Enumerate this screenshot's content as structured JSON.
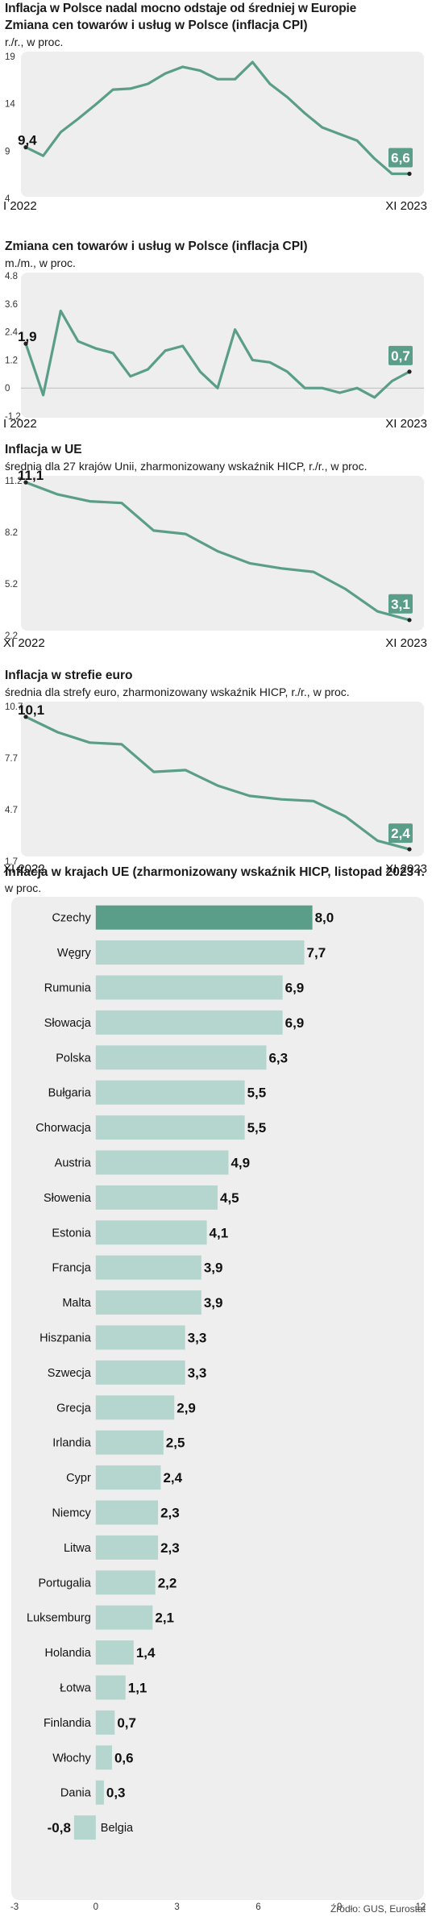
{
  "headline": "Inflacja w Polsce nadal mocno odstaje od średniej w Europie",
  "source": "Źródło: GUS, Eurostat",
  "colors": {
    "line": "#5a9e89",
    "panel": "#eeeeee",
    "bar": "#b4d6ce",
    "bar_highlight": "#5a9e89",
    "label_box": "#5a9e89"
  },
  "chart_data": [
    {
      "id": "cpi-yoy",
      "type": "line",
      "title": "Zmiana cen towarów i usług w Polsce (inflacja CPI)",
      "unit": "r./r., w proc.",
      "x_start_label": "I 2022",
      "x_end_label": "XI 2023",
      "y_ticks": [
        "19",
        "14",
        "9",
        "4"
      ],
      "ylim": [
        4,
        19
      ],
      "start_label": "9,4",
      "end_label": "6,6",
      "x": [
        "I 2022",
        "II 2022",
        "III 2022",
        "IV 2022",
        "V 2022",
        "VI 2022",
        "VII 2022",
        "VIII 2022",
        "IX 2022",
        "X 2022",
        "XI 2022",
        "XII 2022",
        "I 2023",
        "II 2023",
        "III 2023",
        "IV 2023",
        "V 2023",
        "VI 2023",
        "VII 2023",
        "VIII 2023",
        "IX 2023",
        "X 2023",
        "XI 2023"
      ],
      "values": [
        9.4,
        8.5,
        11.0,
        12.4,
        13.9,
        15.5,
        15.6,
        16.1,
        17.2,
        17.9,
        17.5,
        16.6,
        16.6,
        18.4,
        16.1,
        14.7,
        13.0,
        11.5,
        10.8,
        10.1,
        8.2,
        6.6,
        6.6
      ]
    },
    {
      "id": "cpi-mom",
      "type": "line",
      "title": "Zmiana cen towarów i usług w Polsce (inflacja CPI)",
      "unit": "m./m., w proc.",
      "x_start_label": "I 2022",
      "x_end_label": "XI 2023",
      "y_ticks": [
        "4.8",
        "3.6",
        "2.4",
        "1.2",
        "0",
        "-1.2"
      ],
      "ylim": [
        -1.2,
        4.8
      ],
      "start_label": "1,9",
      "end_label": "0,7",
      "x": [
        "I 2022",
        "II 2022",
        "III 2022",
        "IV 2022",
        "V 2022",
        "VI 2022",
        "VII 2022",
        "VIII 2022",
        "IX 2022",
        "X 2022",
        "XI 2022",
        "XII 2022",
        "I 2023",
        "II 2023",
        "III 2023",
        "IV 2023",
        "V 2023",
        "VI 2023",
        "VII 2023",
        "VIII 2023",
        "IX 2023",
        "X 2023",
        "XI 2023"
      ],
      "values": [
        1.9,
        -0.3,
        3.3,
        2.0,
        1.7,
        1.5,
        0.5,
        0.8,
        1.6,
        1.8,
        0.7,
        0.0,
        2.5,
        1.2,
        1.1,
        0.7,
        0.0,
        0.0,
        -0.2,
        0.0,
        -0.4,
        0.3,
        0.7
      ]
    },
    {
      "id": "hicp-eu",
      "type": "line",
      "title": "Inflacja w UE",
      "unit": "średnia dla 27 krajów Unii, zharmonizowany wskaźnik HICP, r./r., w proc.",
      "x_start_label": "XI 2022",
      "x_end_label": "XI 2023",
      "y_ticks": [
        "11.2",
        "8.2",
        "5.2",
        "2.2"
      ],
      "ylim": [
        2.2,
        11.2
      ],
      "start_label": "11,1",
      "end_label": "3,1",
      "x": [
        "XI 2022",
        "XII 2022",
        "I 2023",
        "II 2023",
        "III 2023",
        "IV 2023",
        "V 2023",
        "VI 2023",
        "VII 2023",
        "VIII 2023",
        "IX 2023",
        "X 2023",
        "XI 2023"
      ],
      "values": [
        11.1,
        10.4,
        10.0,
        9.9,
        8.3,
        8.1,
        7.1,
        6.4,
        6.1,
        5.9,
        4.9,
        3.6,
        3.1
      ]
    },
    {
      "id": "hicp-eurozone",
      "type": "line",
      "title": "Inflacja w strefie euro",
      "unit": "średnia dla strefy euro, zharmonizowany wskaźnik HICP, r./r., w proc.",
      "x_start_label": "XI 2022",
      "x_end_label": "XI 2023",
      "y_ticks": [
        "10.7",
        "7.7",
        "4.7",
        "1.7"
      ],
      "ylim": [
        1.7,
        10.7
      ],
      "start_label": "10,1",
      "end_label": "2,4",
      "x": [
        "XI 2022",
        "XII 2022",
        "I 2023",
        "II 2023",
        "III 2023",
        "IV 2023",
        "V 2023",
        "VI 2023",
        "VII 2023",
        "VIII 2023",
        "IX 2023",
        "X 2023",
        "XI 2023"
      ],
      "values": [
        10.1,
        9.2,
        8.6,
        8.5,
        6.9,
        7.0,
        6.1,
        5.5,
        5.3,
        5.2,
        4.3,
        2.9,
        2.4
      ]
    },
    {
      "id": "hicp-countries",
      "type": "bar",
      "orientation": "horizontal",
      "title": "Inflacja w krajach UE (zharmonizowany wskaźnik HICP, listopad 2023 r.",
      "unit": "w proc.",
      "xlim": [
        -3,
        12
      ],
      "x_ticks": [
        "-3",
        "0",
        "3",
        "6",
        "9",
        "12"
      ],
      "highlight": "Czechy",
      "categories": [
        "Czechy",
        "Węgry",
        "Rumunia",
        "Słowacja",
        "Polska",
        "Bułgaria",
        "Chorwacja",
        "Austria",
        "Słowenia",
        "Estonia",
        "Francja",
        "Malta",
        "Hiszpania",
        "Szwecja",
        "Grecja",
        "Irlandia",
        "Cypr",
        "Niemcy",
        "Litwa",
        "Portugalia",
        "Luksemburg",
        "Holandia",
        "Łotwa",
        "Finlandia",
        "Włochy",
        "Dania",
        "Belgia"
      ],
      "values": [
        8.0,
        7.7,
        6.9,
        6.9,
        6.3,
        5.5,
        5.5,
        4.9,
        4.5,
        4.1,
        3.9,
        3.9,
        3.3,
        3.3,
        2.9,
        2.5,
        2.4,
        2.3,
        2.3,
        2.2,
        2.1,
        1.4,
        1.1,
        0.7,
        0.6,
        0.3,
        -0.8
      ],
      "value_labels": [
        "8,0",
        "7,7",
        "6,9",
        "6,9",
        "6,3",
        "5,5",
        "5,5",
        "4,9",
        "4,5",
        "4,1",
        "3,9",
        "3,9",
        "3,3",
        "3,3",
        "2,9",
        "2,5",
        "2,4",
        "2,3",
        "2,3",
        "2,2",
        "2,1",
        "1,4",
        "1,1",
        "0,7",
        "0,6",
        "0,3",
        "-0,8"
      ]
    }
  ]
}
